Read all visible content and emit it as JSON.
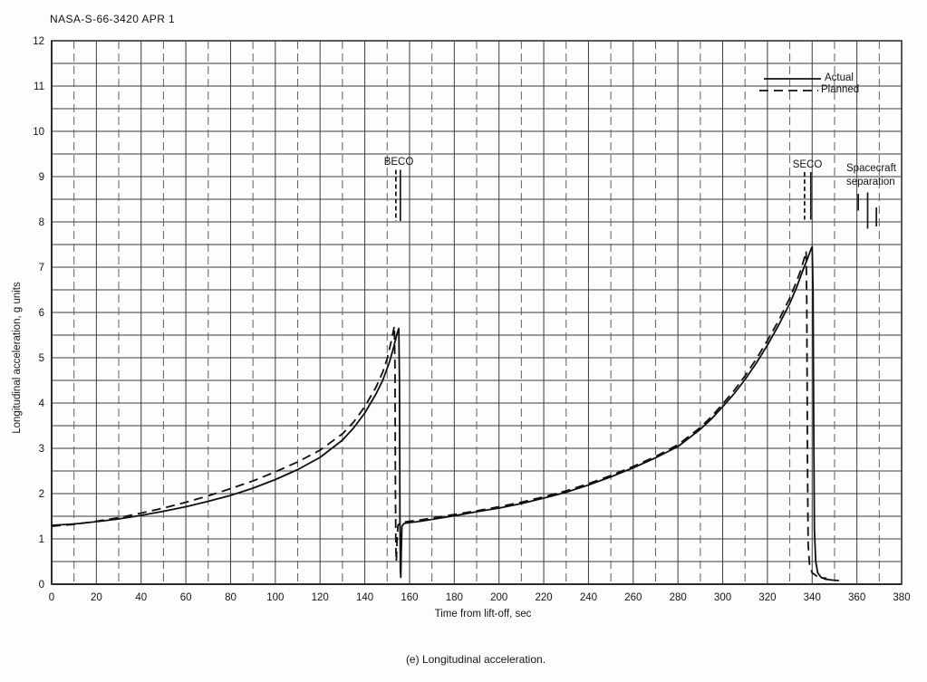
{
  "header": {
    "doc_id": "NASA-S-66-3420 APR 1"
  },
  "caption": "(e) Longitudinal acceleration.",
  "annotations": {
    "beco": "BECO",
    "seco": "SECO",
    "spacecraft_sep_line1": "Spacecraft",
    "spacecraft_sep_line2": "separation"
  },
  "chart_data": {
    "type": "line",
    "title": "",
    "xlabel": "Time from lift-off, sec",
    "ylabel": "Longitudinal acceleration, g units",
    "xlim": [
      0,
      380
    ],
    "ylim": [
      0,
      12
    ],
    "x_tick_step": 20,
    "x_grid_step": 10,
    "y_tick_step": 1,
    "y_grid_step": 0.5,
    "grid": true,
    "legend_position": "top-right",
    "x_ticks": [
      0,
      20,
      40,
      60,
      80,
      100,
      120,
      140,
      160,
      180,
      200,
      220,
      240,
      260,
      280,
      300,
      320,
      340,
      360,
      380
    ],
    "y_ticks": [
      0,
      1,
      2,
      3,
      4,
      5,
      6,
      7,
      8,
      9,
      10,
      11,
      12
    ],
    "series": [
      {
        "name": "Actual",
        "style": "solid",
        "points": [
          [
            0,
            1.3
          ],
          [
            10,
            1.33
          ],
          [
            20,
            1.38
          ],
          [
            30,
            1.44
          ],
          [
            40,
            1.52
          ],
          [
            50,
            1.61
          ],
          [
            60,
            1.71
          ],
          [
            70,
            1.83
          ],
          [
            80,
            1.96
          ],
          [
            90,
            2.12
          ],
          [
            100,
            2.31
          ],
          [
            110,
            2.53
          ],
          [
            120,
            2.8
          ],
          [
            130,
            3.18
          ],
          [
            135,
            3.45
          ],
          [
            140,
            3.78
          ],
          [
            145,
            4.2
          ],
          [
            148,
            4.5
          ],
          [
            151,
            4.9
          ],
          [
            153,
            5.25
          ],
          [
            154.5,
            5.55
          ],
          [
            155.2,
            5.65
          ],
          [
            155.5,
            4.5
          ],
          [
            155.7,
            1.5
          ],
          [
            155.9,
            0.3
          ],
          [
            156.1,
            0.15
          ],
          [
            156.3,
            0.7
          ],
          [
            156.6,
            1.28
          ],
          [
            157.5,
            1.34
          ],
          [
            160,
            1.36
          ],
          [
            165,
            1.39
          ],
          [
            170,
            1.43
          ],
          [
            175,
            1.47
          ],
          [
            180,
            1.51
          ],
          [
            190,
            1.6
          ],
          [
            200,
            1.68
          ],
          [
            210,
            1.78
          ],
          [
            220,
            1.9
          ],
          [
            230,
            2.03
          ],
          [
            240,
            2.19
          ],
          [
            250,
            2.37
          ],
          [
            260,
            2.57
          ],
          [
            270,
            2.79
          ],
          [
            280,
            3.04
          ],
          [
            290,
            3.42
          ],
          [
            295,
            3.65
          ],
          [
            300,
            3.92
          ],
          [
            305,
            4.2
          ],
          [
            310,
            4.52
          ],
          [
            315,
            4.88
          ],
          [
            320,
            5.28
          ],
          [
            325,
            5.72
          ],
          [
            330,
            6.2
          ],
          [
            333,
            6.55
          ],
          [
            336,
            6.95
          ],
          [
            338,
            7.2
          ],
          [
            339.5,
            7.4
          ],
          [
            340,
            7.45
          ],
          [
            340.4,
            6.5
          ],
          [
            340.7,
            3.5
          ],
          [
            341,
            1.2
          ],
          [
            341.6,
            0.5
          ],
          [
            342.5,
            0.25
          ],
          [
            344,
            0.15
          ],
          [
            346,
            0.11
          ],
          [
            349,
            0.09
          ],
          [
            352,
            0.08
          ]
        ]
      },
      {
        "name": "Planned",
        "style": "dashed",
        "points": [
          [
            0,
            1.28
          ],
          [
            10,
            1.32
          ],
          [
            20,
            1.39
          ],
          [
            30,
            1.47
          ],
          [
            40,
            1.57
          ],
          [
            50,
            1.68
          ],
          [
            60,
            1.81
          ],
          [
            70,
            1.95
          ],
          [
            80,
            2.11
          ],
          [
            90,
            2.28
          ],
          [
            100,
            2.48
          ],
          [
            110,
            2.7
          ],
          [
            120,
            2.96
          ],
          [
            130,
            3.32
          ],
          [
            135,
            3.58
          ],
          [
            140,
            3.92
          ],
          [
            145,
            4.35
          ],
          [
            148,
            4.68
          ],
          [
            150,
            4.98
          ],
          [
            152,
            5.4
          ],
          [
            153.2,
            5.7
          ],
          [
            153.5,
            4.8
          ],
          [
            153.7,
            2.0
          ],
          [
            153.9,
            0.8
          ],
          [
            154.1,
            0.5
          ],
          [
            154.4,
            0.95
          ],
          [
            154.8,
            1.3
          ],
          [
            156,
            1.36
          ],
          [
            160,
            1.39
          ],
          [
            165,
            1.42
          ],
          [
            170,
            1.46
          ],
          [
            175,
            1.5
          ],
          [
            180,
            1.54
          ],
          [
            190,
            1.62
          ],
          [
            200,
            1.71
          ],
          [
            210,
            1.81
          ],
          [
            220,
            1.93
          ],
          [
            230,
            2.06
          ],
          [
            240,
            2.22
          ],
          [
            250,
            2.4
          ],
          [
            260,
            2.6
          ],
          [
            270,
            2.82
          ],
          [
            280,
            3.08
          ],
          [
            290,
            3.46
          ],
          [
            295,
            3.7
          ],
          [
            300,
            3.98
          ],
          [
            305,
            4.27
          ],
          [
            310,
            4.6
          ],
          [
            315,
            4.97
          ],
          [
            320,
            5.38
          ],
          [
            325,
            5.82
          ],
          [
            330,
            6.32
          ],
          [
            333,
            6.68
          ],
          [
            335,
            6.95
          ],
          [
            336.5,
            7.2
          ],
          [
            337.3,
            7.35
          ],
          [
            337.6,
            6.2
          ],
          [
            337.9,
            2.8
          ],
          [
            338.2,
            0.9
          ],
          [
            338.8,
            0.45
          ],
          [
            340,
            0.25
          ],
          [
            342,
            0.18
          ],
          [
            344.5,
            0.14
          ],
          [
            346.5,
            0.13
          ]
        ]
      }
    ],
    "events": [
      {
        "label": "BECO",
        "t": 155
      },
      {
        "label": "SECO",
        "t": 338
      },
      {
        "label": "Spacecraft separation",
        "t": 365
      }
    ],
    "event_marks": [
      {
        "t": 153.9,
        "g1": 9.15,
        "g2": 8.02,
        "style": "dashed"
      },
      {
        "t": 155.9,
        "g1": 9.15,
        "g2": 8.02,
        "style": "solid"
      },
      {
        "t": 336.6,
        "g1": 9.1,
        "g2": 8.05,
        "style": "dashed"
      },
      {
        "t": 339.4,
        "g1": 9.1,
        "g2": 8.05,
        "style": "solid"
      },
      {
        "t": 360.6,
        "g1": 8.62,
        "g2": 8.25,
        "style": "solid"
      },
      {
        "t": 364.8,
        "g1": 8.65,
        "g2": 7.85,
        "style": "solid"
      },
      {
        "t": 368.7,
        "g1": 8.32,
        "g2": 7.9,
        "style": "solid"
      }
    ],
    "line_color": "#101010",
    "grid_color": "#3c3c3c"
  }
}
